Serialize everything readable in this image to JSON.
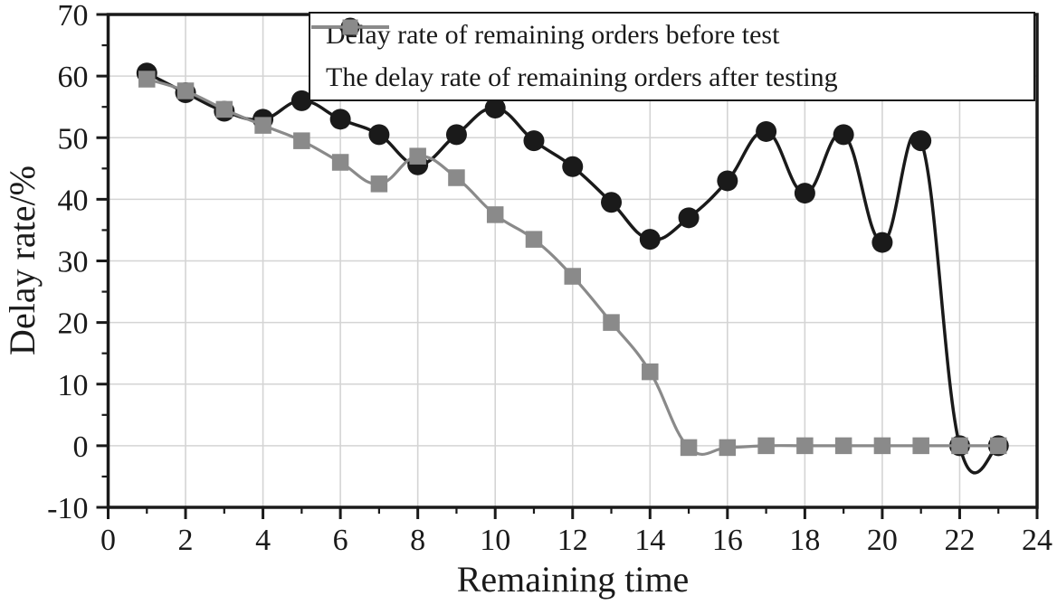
{
  "chart_data": {
    "type": "line",
    "xlabel": "Remaining time",
    "ylabel": "Delay rate/%",
    "xlim": [
      0,
      24
    ],
    "ylim": [
      -10,
      70
    ],
    "xticks": [
      0,
      2,
      4,
      6,
      8,
      10,
      12,
      14,
      16,
      18,
      20,
      22,
      24
    ],
    "yticks": [
      -10,
      0,
      10,
      20,
      30,
      40,
      50,
      60,
      70
    ],
    "x_minor_step": 1,
    "y_minor_step": 5,
    "grid": true,
    "legend_position": "top",
    "x": [
      1,
      2,
      3,
      4,
      5,
      6,
      7,
      8,
      9,
      10,
      11,
      12,
      13,
      14,
      15,
      16,
      17,
      18,
      19,
      20,
      21,
      22,
      23
    ],
    "series": [
      {
        "name": "Delay rate of remaining orders before test",
        "marker": "circle",
        "color": "#1a1a1a",
        "values": [
          60.5,
          57.3,
          54.3,
          53,
          56,
          53,
          50.5,
          45.6,
          50.5,
          54.8,
          49.5,
          45.3,
          39.5,
          33.5,
          37,
          43,
          51,
          41,
          50.5,
          33,
          49.5,
          0,
          0
        ]
      },
      {
        "name": "The delay rate of remaining orders after testing",
        "marker": "square",
        "color": "#8a8a8a",
        "values": [
          59.5,
          57.6,
          54.6,
          52,
          49.5,
          46,
          42.5,
          47,
          43.5,
          37.5,
          33.5,
          27.5,
          20,
          12,
          -0.3,
          -0.3,
          0,
          0,
          0,
          0,
          0,
          0,
          0
        ]
      }
    ],
    "colors": {
      "grid": "#d4d4d4",
      "frame": "#1a1a1a",
      "background": "#ffffff",
      "series_before": "#1a1a1a",
      "series_after": "#8a8a8a"
    }
  }
}
